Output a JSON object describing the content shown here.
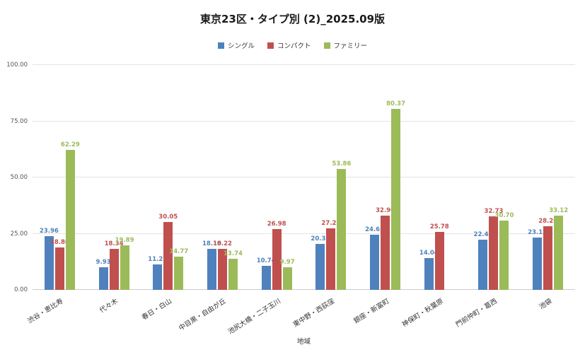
{
  "chart_data": {
    "type": "bar",
    "title": "東京23区・タイプ別 (2)_2025.09版",
    "xlabel": "地域",
    "ylabel": "",
    "ylim": [
      0,
      100
    ],
    "yticks": [
      0,
      25,
      50,
      75,
      100
    ],
    "ytick_labels": [
      "0.00",
      "25.00",
      "50.00",
      "75.00",
      "100.00"
    ],
    "grid": true,
    "legend_position": "top",
    "categories": [
      "渋谷・恵比寿",
      "代々木",
      "春日・白山",
      "中目黒・自由が丘",
      "池尻大橋・二子玉川",
      "東中野・西荻窪",
      "銀座・新富町",
      "神保町・秋葉原",
      "門前仲町・葛西",
      "池袋"
    ],
    "series": [
      {
        "name": "シングル",
        "color": "#4F81BD",
        "values": [
          23.96,
          9.93,
          11.21,
          18.1,
          10.74,
          20.32,
          24.65,
          14.04,
          22.47,
          23.15
        ]
      },
      {
        "name": "コンパクト",
        "color": "#C0504D",
        "values": [
          18.86,
          18.34,
          30.05,
          18.22,
          26.98,
          27.22,
          32.9,
          25.78,
          32.73,
          28.2
        ]
      },
      {
        "name": "ファミリー",
        "color": "#9BBB59",
        "values": [
          62.29,
          19.89,
          14.77,
          13.74,
          9.97,
          53.86,
          80.37,
          null,
          30.7,
          33.12
        ]
      }
    ]
  }
}
